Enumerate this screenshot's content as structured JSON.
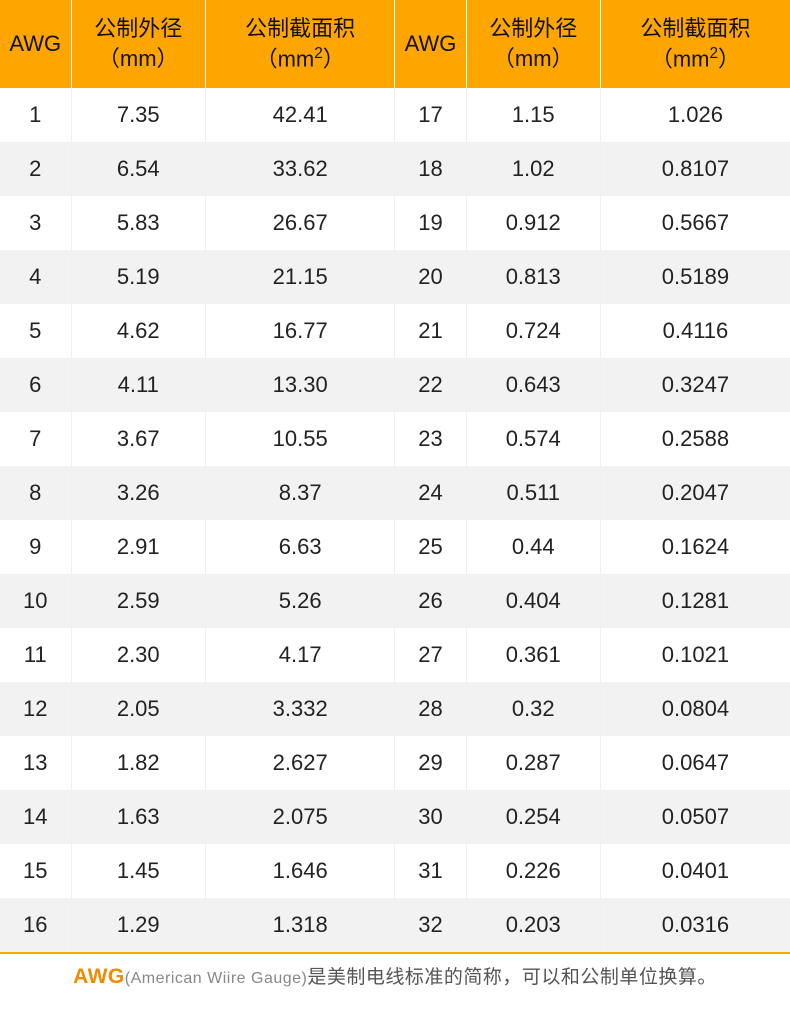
{
  "header": {
    "awg": "AWG",
    "diameter_l1": "公制外径",
    "diameter_l2": "（mm）",
    "area_l1": "公制截面积",
    "area_l2a": "（mm",
    "area_sup": "2",
    "area_l2b": "）"
  },
  "rows": [
    {
      "a1": "1",
      "d1": "7.35",
      "s1": "42.41",
      "a2": "17",
      "d2": "1.15",
      "s2": "1.026"
    },
    {
      "a1": "2",
      "d1": "6.54",
      "s1": "33.62",
      "a2": "18",
      "d2": "1.02",
      "s2": "0.8107"
    },
    {
      "a1": "3",
      "d1": "5.83",
      "s1": "26.67",
      "a2": "19",
      "d2": "0.912",
      "s2": "0.5667"
    },
    {
      "a1": "4",
      "d1": "5.19",
      "s1": "21.15",
      "a2": "20",
      "d2": "0.813",
      "s2": "0.5189"
    },
    {
      "a1": "5",
      "d1": "4.62",
      "s1": "16.77",
      "a2": "21",
      "d2": "0.724",
      "s2": "0.4116"
    },
    {
      "a1": "6",
      "d1": "4.11",
      "s1": "13.30",
      "a2": "22",
      "d2": "0.643",
      "s2": "0.3247"
    },
    {
      "a1": "7",
      "d1": "3.67",
      "s1": "10.55",
      "a2": "23",
      "d2": "0.574",
      "s2": "0.2588"
    },
    {
      "a1": "8",
      "d1": "3.26",
      "s1": "8.37",
      "a2": "24",
      "d2": "0.511",
      "s2": "0.2047"
    },
    {
      "a1": "9",
      "d1": "2.91",
      "s1": "6.63",
      "a2": "25",
      "d2": "0.44",
      "s2": "0.1624"
    },
    {
      "a1": "10",
      "d1": "2.59",
      "s1": "5.26",
      "a2": "26",
      "d2": "0.404",
      "s2": "0.1281"
    },
    {
      "a1": "11",
      "d1": "2.30",
      "s1": "4.17",
      "a2": "27",
      "d2": "0.361",
      "s2": "0.1021"
    },
    {
      "a1": "12",
      "d1": "2.05",
      "s1": "3.332",
      "a2": "28",
      "d2": "0.32",
      "s2": "0.0804"
    },
    {
      "a1": "13",
      "d1": "1.82",
      "s1": "2.627",
      "a2": "29",
      "d2": "0.287",
      "s2": "0.0647"
    },
    {
      "a1": "14",
      "d1": "1.63",
      "s1": "2.075",
      "a2": "30",
      "d2": "0.254",
      "s2": "0.0507"
    },
    {
      "a1": "15",
      "d1": "1.45",
      "s1": "1.646",
      "a2": "31",
      "d2": "0.226",
      "s2": "0.0401"
    },
    {
      "a1": "16",
      "d1": "1.29",
      "s1": "1.318",
      "a2": "32",
      "d2": "0.203",
      "s2": "0.0316"
    }
  ],
  "footer": {
    "awg": "AWG",
    "en": "(American Wiire Gauge)",
    "rest": "是美制电线标准的简称，可以和公制单位换算。"
  },
  "style": {
    "header_bg": "#ffa500",
    "row_even_bg": "#f2f2f2",
    "row_odd_bg": "#ffffff",
    "footer_border": "#ffa500",
    "col_widths_pct": [
      9,
      17,
      24,
      9,
      17,
      24
    ]
  }
}
